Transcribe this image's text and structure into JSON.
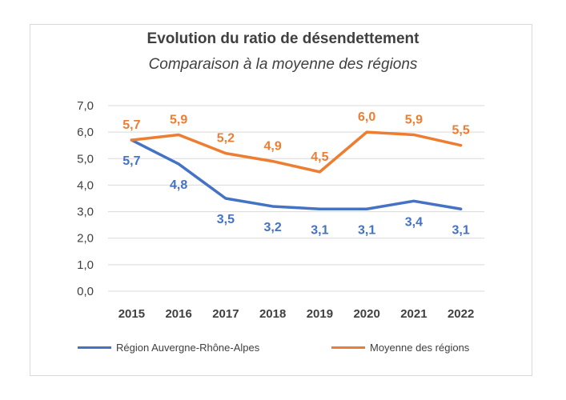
{
  "chart_data": {
    "type": "line",
    "title": "Evolution du ratio de désendettement",
    "subtitle": "Comparaison à la moyenne des régions",
    "categories": [
      "2015",
      "2016",
      "2017",
      "2018",
      "2019",
      "2020",
      "2021",
      "2022"
    ],
    "y_ticks": [
      "0,0",
      "1,0",
      "2,0",
      "3,0",
      "4,0",
      "5,0",
      "6,0",
      "7,0"
    ],
    "ylim": [
      0,
      7
    ],
    "grid": true,
    "legend_position": "bottom",
    "series": [
      {
        "name": "Région Auvergne-Rhône-Alpes",
        "color": "#4472c4",
        "values": [
          5.7,
          4.8,
          3.5,
          3.2,
          3.1,
          3.1,
          3.4,
          3.1
        ],
        "labels": [
          "5,7",
          "4,8",
          "3,5",
          "3,2",
          "3,1",
          "3,1",
          "3,4",
          "3,1"
        ],
        "label_position": "below"
      },
      {
        "name": "Moyenne des régions",
        "color": "#ed7d31",
        "values": [
          5.7,
          5.9,
          5.2,
          4.9,
          4.5,
          6.0,
          5.9,
          5.5
        ],
        "labels": [
          "5,7",
          "5,9",
          "5,2",
          "4,9",
          "4,5",
          "6,0",
          "5,9",
          "5,5"
        ],
        "label_position": "above"
      }
    ]
  }
}
